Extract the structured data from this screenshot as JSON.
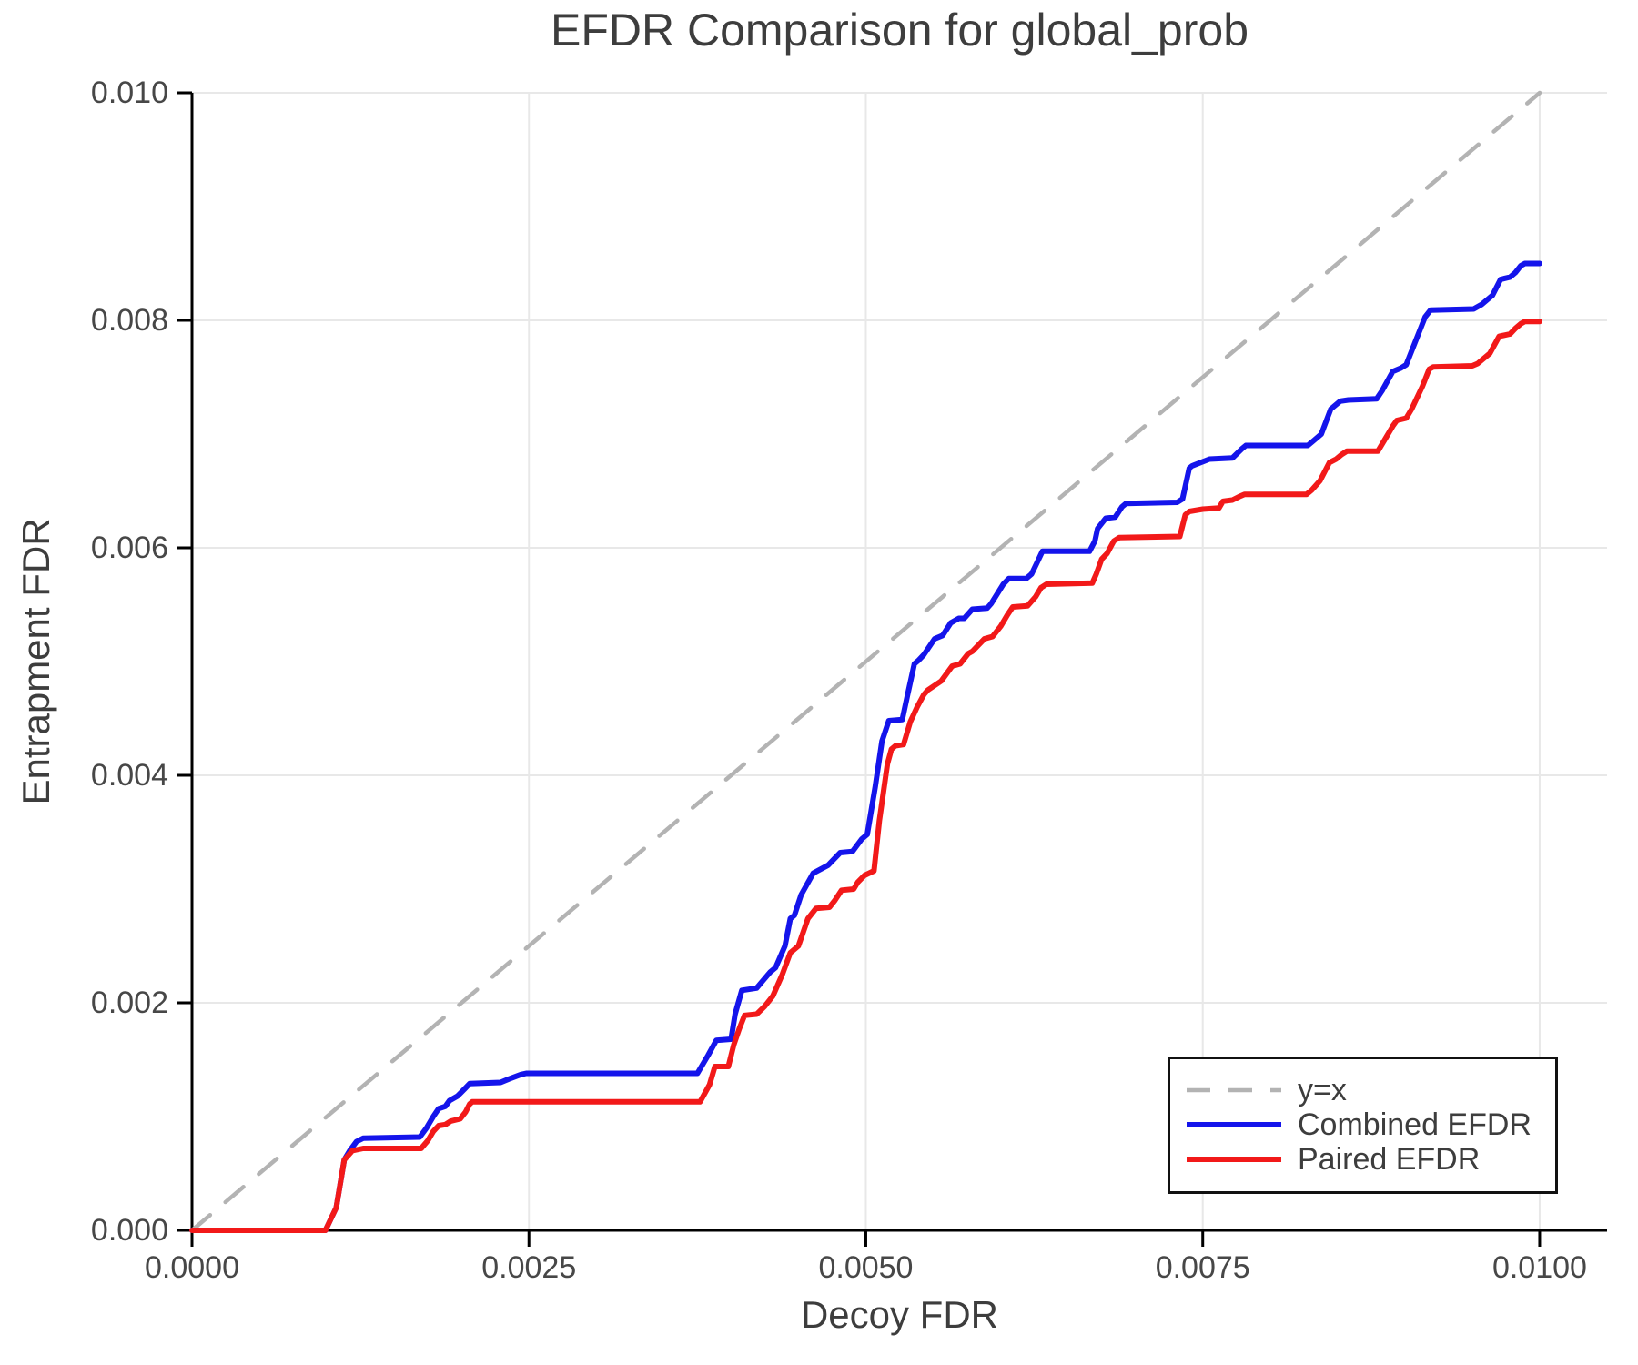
{
  "chart_data": {
    "type": "line",
    "title": "EFDR Comparison for global_prob",
    "xlabel": "Decoy FDR",
    "ylabel": "Entrapment FDR",
    "xlim": [
      0,
      0.0105
    ],
    "ylim": [
      0,
      0.01
    ],
    "grid": true,
    "grid_color": "#E8E8E8",
    "axis_color": "#000000",
    "text_color": "#3D3D3D",
    "legend_position": "bottom-right",
    "x_ticks": {
      "values": [
        0,
        0.0025,
        0.005,
        0.0075,
        0.01
      ],
      "labels": [
        "0.0000",
        "0.0025",
        "0.0050",
        "0.0075",
        "0.0100"
      ]
    },
    "y_ticks": {
      "values": [
        0,
        0.002,
        0.004,
        0.006,
        0.008,
        0.01
      ],
      "labels": [
        "0.000",
        "0.002",
        "0.004",
        "0.006",
        "0.008",
        "0.010"
      ]
    },
    "series": [
      {
        "name": "y=x",
        "color": "#B3B3B3",
        "style": "dashed",
        "width": 4.5,
        "points": [
          [
            0,
            0
          ],
          [
            0.01,
            0.01
          ]
        ]
      },
      {
        "name": "Combined EFDR",
        "color": "#1414EB",
        "style": "solid",
        "width": 6,
        "points": [
          [
            0.0,
            0.0
          ],
          [
            0.00099,
            0.0
          ],
          [
            0.00107,
            0.0002
          ],
          [
            0.00113,
            0.00062
          ],
          [
            0.00117,
            0.0007
          ],
          [
            0.00122,
            0.00078
          ],
          [
            0.00127,
            0.00081
          ],
          [
            0.00169,
            0.00082
          ],
          [
            0.00174,
            0.0009
          ],
          [
            0.00179,
            0.001
          ],
          [
            0.00183,
            0.00107
          ],
          [
            0.00188,
            0.00109
          ],
          [
            0.00191,
            0.00114
          ],
          [
            0.00197,
            0.00118
          ],
          [
            0.00202,
            0.00124
          ],
          [
            0.00206,
            0.00129
          ],
          [
            0.00229,
            0.0013
          ],
          [
            0.00235,
            0.00133
          ],
          [
            0.00244,
            0.00137
          ],
          [
            0.00248,
            0.00138
          ],
          [
            0.00375,
            0.00138
          ],
          [
            0.00383,
            0.00154
          ],
          [
            0.00389,
            0.00167
          ],
          [
            0.004,
            0.00168
          ],
          [
            0.00403,
            0.0019
          ],
          [
            0.00408,
            0.00211
          ],
          [
            0.00419,
            0.00213
          ],
          [
            0.00424,
            0.0022
          ],
          [
            0.00429,
            0.00227
          ],
          [
            0.00433,
            0.00231
          ],
          [
            0.0044,
            0.0025
          ],
          [
            0.00444,
            0.00274
          ],
          [
            0.00447,
            0.00277
          ],
          [
            0.00452,
            0.00295
          ],
          [
            0.00461,
            0.00314
          ],
          [
            0.00472,
            0.00321
          ],
          [
            0.00481,
            0.00332
          ],
          [
            0.0049,
            0.00333
          ],
          [
            0.00497,
            0.00344
          ],
          [
            0.00501,
            0.00348
          ],
          [
            0.00507,
            0.0039
          ],
          [
            0.00512,
            0.0043
          ],
          [
            0.00517,
            0.00448
          ],
          [
            0.00527,
            0.00449
          ],
          [
            0.00531,
            0.00471
          ],
          [
            0.00536,
            0.00498
          ],
          [
            0.00539,
            0.00501
          ],
          [
            0.00543,
            0.00506
          ],
          [
            0.00551,
            0.0052
          ],
          [
            0.00557,
            0.00523
          ],
          [
            0.00563,
            0.00534
          ],
          [
            0.00569,
            0.00538
          ],
          [
            0.00573,
            0.00538
          ],
          [
            0.00579,
            0.00546
          ],
          [
            0.0059,
            0.00547
          ],
          [
            0.00593,
            0.00551
          ],
          [
            0.00602,
            0.00568
          ],
          [
            0.00606,
            0.00573
          ],
          [
            0.00619,
            0.00573
          ],
          [
            0.00623,
            0.00577
          ],
          [
            0.00627,
            0.00587
          ],
          [
            0.00631,
            0.00597
          ],
          [
            0.00666,
            0.00597
          ],
          [
            0.0067,
            0.00606
          ],
          [
            0.00672,
            0.00617
          ],
          [
            0.00678,
            0.00626
          ],
          [
            0.00685,
            0.00627
          ],
          [
            0.0069,
            0.00636
          ],
          [
            0.00693,
            0.00639
          ],
          [
            0.00731,
            0.0064
          ],
          [
            0.00735,
            0.00643
          ],
          [
            0.0074,
            0.0067
          ],
          [
            0.00742,
            0.00672
          ],
          [
            0.00755,
            0.00678
          ],
          [
            0.00772,
            0.00679
          ],
          [
            0.00779,
            0.00687
          ],
          [
            0.00782,
            0.0069
          ],
          [
            0.00828,
            0.0069
          ],
          [
            0.00832,
            0.00694
          ],
          [
            0.00838,
            0.007
          ],
          [
            0.00845,
            0.00722
          ],
          [
            0.00852,
            0.00729
          ],
          [
            0.00858,
            0.0073
          ],
          [
            0.00879,
            0.00731
          ],
          [
            0.00883,
            0.00738
          ],
          [
            0.00891,
            0.00755
          ],
          [
            0.00897,
            0.00758
          ],
          [
            0.00901,
            0.00761
          ],
          [
            0.00907,
            0.00779
          ],
          [
            0.00915,
            0.00803
          ],
          [
            0.00919,
            0.00809
          ],
          [
            0.00951,
            0.0081
          ],
          [
            0.00957,
            0.00814
          ],
          [
            0.00965,
            0.00822
          ],
          [
            0.00971,
            0.00836
          ],
          [
            0.00978,
            0.00838
          ],
          [
            0.00982,
            0.00842
          ],
          [
            0.00986,
            0.00848
          ],
          [
            0.00989,
            0.0085
          ],
          [
            0.01,
            0.0085
          ]
        ]
      },
      {
        "name": "Paired EFDR",
        "color": "#F21919",
        "style": "solid",
        "width": 6,
        "points": [
          [
            0.0,
            0.0
          ],
          [
            0.00099,
            0.0
          ],
          [
            0.00107,
            0.0002
          ],
          [
            0.00113,
            0.00062
          ],
          [
            0.00119,
            0.0007
          ],
          [
            0.00127,
            0.00072
          ],
          [
            0.0017,
            0.00072
          ],
          [
            0.00175,
            0.00079
          ],
          [
            0.00179,
            0.00087
          ],
          [
            0.00183,
            0.00092
          ],
          [
            0.00188,
            0.00093
          ],
          [
            0.00192,
            0.00096
          ],
          [
            0.00199,
            0.00098
          ],
          [
            0.00203,
            0.00104
          ],
          [
            0.00206,
            0.00111
          ],
          [
            0.00208,
            0.00113
          ],
          [
            0.00377,
            0.00113
          ],
          [
            0.00384,
            0.00128
          ],
          [
            0.00388,
            0.00144
          ],
          [
            0.00398,
            0.00144
          ],
          [
            0.00402,
            0.00163
          ],
          [
            0.00406,
            0.00177
          ],
          [
            0.0041,
            0.00189
          ],
          [
            0.00419,
            0.0019
          ],
          [
            0.00425,
            0.00197
          ],
          [
            0.00431,
            0.00206
          ],
          [
            0.00438,
            0.00225
          ],
          [
            0.00444,
            0.00244
          ],
          [
            0.0045,
            0.0025
          ],
          [
            0.00457,
            0.00274
          ],
          [
            0.00463,
            0.00283
          ],
          [
            0.00473,
            0.00284
          ],
          [
            0.00477,
            0.0029
          ],
          [
            0.00482,
            0.00299
          ],
          [
            0.00491,
            0.003
          ],
          [
            0.00494,
            0.00306
          ],
          [
            0.00499,
            0.00312
          ],
          [
            0.00506,
            0.00316
          ],
          [
            0.0051,
            0.0036
          ],
          [
            0.00516,
            0.0041
          ],
          [
            0.00519,
            0.00423
          ],
          [
            0.00522,
            0.00426
          ],
          [
            0.00528,
            0.00427
          ],
          [
            0.00533,
            0.00447
          ],
          [
            0.00538,
            0.0046
          ],
          [
            0.00543,
            0.00471
          ],
          [
            0.00546,
            0.00475
          ],
          [
            0.00556,
            0.00483
          ],
          [
            0.00564,
            0.00496
          ],
          [
            0.0057,
            0.00498
          ],
          [
            0.00576,
            0.00507
          ],
          [
            0.00579,
            0.00509
          ],
          [
            0.00588,
            0.0052
          ],
          [
            0.00594,
            0.00522
          ],
          [
            0.006,
            0.00531
          ],
          [
            0.00605,
            0.00541
          ],
          [
            0.00609,
            0.00548
          ],
          [
            0.0062,
            0.00549
          ],
          [
            0.00626,
            0.00557
          ],
          [
            0.0063,
            0.00565
          ],
          [
            0.00634,
            0.00568
          ],
          [
            0.00668,
            0.00569
          ],
          [
            0.00671,
            0.00577
          ],
          [
            0.00675,
            0.0059
          ],
          [
            0.00679,
            0.00595
          ],
          [
            0.00684,
            0.00606
          ],
          [
            0.00688,
            0.00609
          ],
          [
            0.00733,
            0.0061
          ],
          [
            0.00737,
            0.00629
          ],
          [
            0.0074,
            0.00632
          ],
          [
            0.0075,
            0.00634
          ],
          [
            0.00762,
            0.00635
          ],
          [
            0.00765,
            0.00641
          ],
          [
            0.00772,
            0.00642
          ],
          [
            0.00777,
            0.00645
          ],
          [
            0.00781,
            0.00647
          ],
          [
            0.00827,
            0.00647
          ],
          [
            0.00831,
            0.00651
          ],
          [
            0.00837,
            0.00659
          ],
          [
            0.00844,
            0.00675
          ],
          [
            0.00849,
            0.00678
          ],
          [
            0.00853,
            0.00682
          ],
          [
            0.00857,
            0.00685
          ],
          [
            0.0088,
            0.00685
          ],
          [
            0.00885,
            0.00695
          ],
          [
            0.00891,
            0.00707
          ],
          [
            0.00894,
            0.00712
          ],
          [
            0.00901,
            0.00714
          ],
          [
            0.00905,
            0.00722
          ],
          [
            0.00913,
            0.00742
          ],
          [
            0.00918,
            0.00757
          ],
          [
            0.00921,
            0.00759
          ],
          [
            0.0095,
            0.0076
          ],
          [
            0.00954,
            0.00762
          ],
          [
            0.00963,
            0.00771
          ],
          [
            0.0097,
            0.00786
          ],
          [
            0.00978,
            0.00788
          ],
          [
            0.00982,
            0.00793
          ],
          [
            0.00986,
            0.00797
          ],
          [
            0.00989,
            0.00799
          ],
          [
            0.01,
            0.00799
          ]
        ]
      }
    ]
  }
}
